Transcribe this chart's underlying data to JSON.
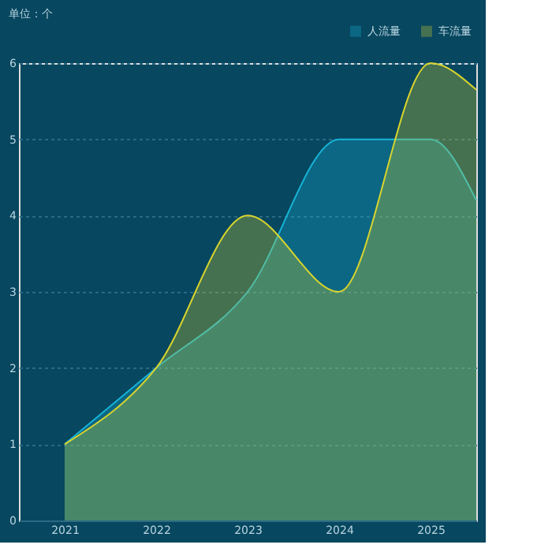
{
  "chart_data": {
    "type": "area",
    "ylabel": "单位：个",
    "x": [
      2021,
      2022,
      2023,
      2024,
      2025,
      2025.5
    ],
    "xlim": [
      2020.5,
      2025.5
    ],
    "xticks": [
      2021,
      2022,
      2023,
      2024,
      2025
    ],
    "ylim": [
      0,
      6
    ],
    "yticks": [
      0,
      1,
      2,
      3,
      4,
      5,
      6
    ],
    "grid": "y",
    "legend": "top right",
    "series": [
      {
        "name": "人流量",
        "color": "#17b3d8",
        "values": [
          1,
          2,
          3,
          5,
          5,
          4.2
        ]
      },
      {
        "name": "车流量",
        "color": "#d8d42e",
        "values": [
          1,
          2,
          4,
          3,
          6,
          5.65
        ]
      }
    ]
  }
}
